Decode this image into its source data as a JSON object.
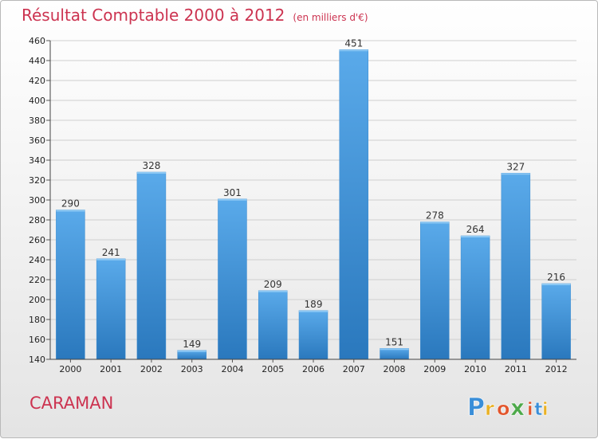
{
  "header": {
    "title": "Résultat Comptable 2000 à 2012",
    "unit": "(en milliers d'€)"
  },
  "footer": {
    "city": "CARAMAN",
    "brand_letters": [
      "P",
      "r",
      "o",
      "x",
      "i",
      "t",
      "i"
    ]
  },
  "colors": {
    "title": "#cc3350",
    "bar_light": "#5aaaea",
    "bar_dark": "#2a78bd",
    "brand": [
      "#3a8ed8",
      "#e9b125",
      "#e2562d",
      "#4da94a",
      "#e2562d",
      "#3a8ed8",
      "#e9b125"
    ]
  },
  "chart_data": {
    "type": "bar",
    "title": "Résultat Comptable 2000 à 2012",
    "subtitle": "(en milliers d'€)",
    "xlabel": "",
    "ylabel": "",
    "categories": [
      "2000",
      "2001",
      "2002",
      "2003",
      "2004",
      "2005",
      "2006",
      "2007",
      "2008",
      "2009",
      "2010",
      "2011",
      "2012"
    ],
    "values": [
      290,
      241,
      328,
      149,
      301,
      209,
      189,
      451,
      151,
      278,
      264,
      327,
      216
    ],
    "ylim": [
      140,
      460
    ],
    "yticks": [
      140,
      160,
      180,
      200,
      220,
      240,
      260,
      280,
      300,
      320,
      340,
      360,
      380,
      400,
      420,
      440,
      460
    ],
    "grid": true
  }
}
